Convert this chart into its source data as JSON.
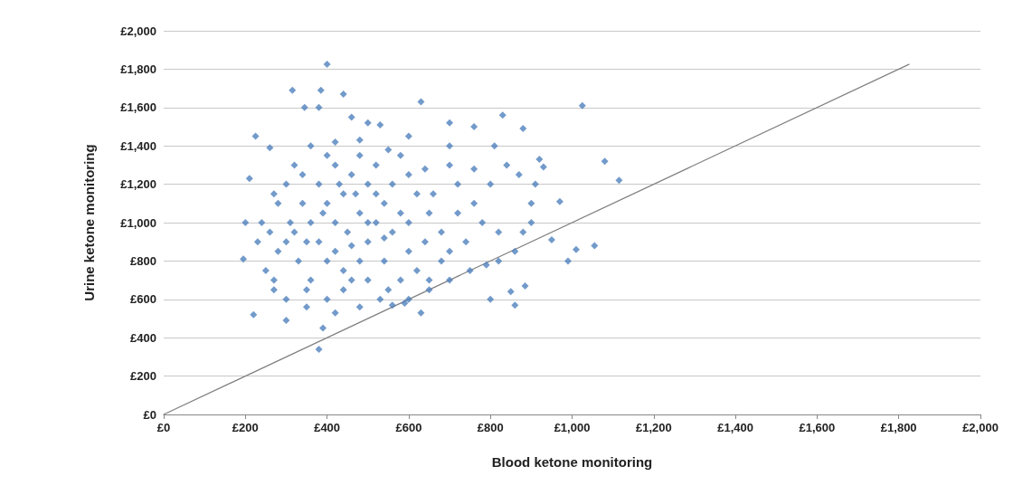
{
  "chart_data": {
    "type": "scatter",
    "xlabel": "Blood ketone monitoring",
    "ylabel": "Urine ketone monitoring",
    "xlim": [
      0,
      2000
    ],
    "ylim": [
      0,
      2000
    ],
    "xticks": [
      {
        "value": 0,
        "label": "£0"
      },
      {
        "value": 200,
        "label": "£200"
      },
      {
        "value": 400,
        "label": "£400"
      },
      {
        "value": 600,
        "label": "£600"
      },
      {
        "value": 800,
        "label": "£800"
      },
      {
        "value": 1000,
        "label": "£1,000"
      },
      {
        "value": 1200,
        "label": "£1,200"
      },
      {
        "value": 1400,
        "label": "£1,400"
      },
      {
        "value": 1600,
        "label": "£1,600"
      },
      {
        "value": 1800,
        "label": "£1,800"
      },
      {
        "value": 2000,
        "label": "£2,000"
      }
    ],
    "yticks": [
      {
        "value": 0,
        "label": "£0"
      },
      {
        "value": 200,
        "label": "£200"
      },
      {
        "value": 400,
        "label": "£400"
      },
      {
        "value": 600,
        "label": "£600"
      },
      {
        "value": 800,
        "label": "£800"
      },
      {
        "value": 1000,
        "label": "£1,000"
      },
      {
        "value": 1200,
        "label": "£1,200"
      },
      {
        "value": 1400,
        "label": "£1,400"
      },
      {
        "value": 1600,
        "label": "£1,600"
      },
      {
        "value": 1800,
        "label": "£1,800"
      },
      {
        "value": 2000,
        "label": "£2,000"
      }
    ],
    "grid": "y",
    "marker": "diamond",
    "series": [
      {
        "color": "#4f81bd",
        "x": [
          400,
          315,
          385,
          440,
          630,
          1025,
          345,
          380,
          460,
          500,
          530,
          700,
          760,
          830,
          880,
          225,
          810,
          1080,
          1115,
          920,
          930,
          970,
          910,
          1010,
          1055,
          990,
          950,
          860,
          860,
          850,
          885,
          800,
          590,
          630,
          380,
          390,
          300,
          220,
          195,
          200,
          210,
          260,
          270,
          240,
          230,
          250,
          270,
          300,
          350,
          420,
          480,
          530,
          560,
          600,
          650,
          700,
          750,
          790,
          820,
          700,
          640,
          600,
          550,
          480,
          420,
          360,
          320,
          300,
          280,
          720,
          760,
          800,
          840,
          870,
          900,
          780,
          820,
          880,
          900,
          740,
          700,
          680,
          650,
          620,
          600,
          560,
          540,
          520,
          500,
          480,
          460,
          440,
          400,
          360,
          330,
          300,
          310,
          340,
          380,
          420,
          460,
          500,
          440,
          400,
          360,
          380,
          420,
          450,
          480,
          520,
          560,
          600,
          620,
          580,
          540,
          500,
          440,
          400,
          350,
          320,
          280,
          260,
          270,
          350,
          600,
          640,
          680,
          720,
          660,
          700,
          760,
          580,
          520,
          480,
          400,
          340,
          420,
          460,
          500,
          540,
          390,
          430,
          470,
          580,
          650,
          550
        ],
        "values": [
          1825,
          1690,
          1690,
          1670,
          1630,
          1610,
          1600,
          1600,
          1550,
          1520,
          1510,
          1520,
          1500,
          1560,
          1490,
          1450,
          1400,
          1320,
          1220,
          1330,
          1290,
          1110,
          1200,
          860,
          880,
          800,
          910,
          850,
          570,
          640,
          670,
          600,
          580,
          530,
          340,
          450,
          490,
          520,
          810,
          1000,
          1230,
          1390,
          1150,
          1000,
          900,
          750,
          650,
          600,
          560,
          530,
          560,
          600,
          570,
          600,
          650,
          700,
          750,
          780,
          800,
          1400,
          1280,
          1450,
          1380,
          1430,
          1420,
          1400,
          1300,
          1200,
          1100,
          1200,
          1100,
          1200,
          1300,
          1250,
          1100,
          1000,
          950,
          950,
          1000,
          900,
          850,
          950,
          1050,
          1150,
          1250,
          1200,
          1100,
          1000,
          900,
          800,
          700,
          650,
          600,
          700,
          800,
          900,
          1000,
          1100,
          1200,
          1300,
          1250,
          1200,
          1150,
          1100,
          1000,
          900,
          850,
          950,
          1050,
          1150,
          950,
          850,
          750,
          700,
          800,
          700,
          750,
          800,
          900,
          950,
          850,
          950,
          700,
          650,
          1000,
          900,
          800,
          1050,
          1150,
          1300,
          1280,
          1350,
          1300,
          1350,
          1350,
          1250,
          1000,
          880,
          1000,
          920,
          1050,
          1200,
          1150,
          1050,
          700,
          650
        ]
      },
      {
        "type": "line",
        "color": "#808080",
        "marker": "none",
        "x": [
          0,
          1825
        ],
        "values": [
          0,
          1825
        ]
      }
    ]
  }
}
